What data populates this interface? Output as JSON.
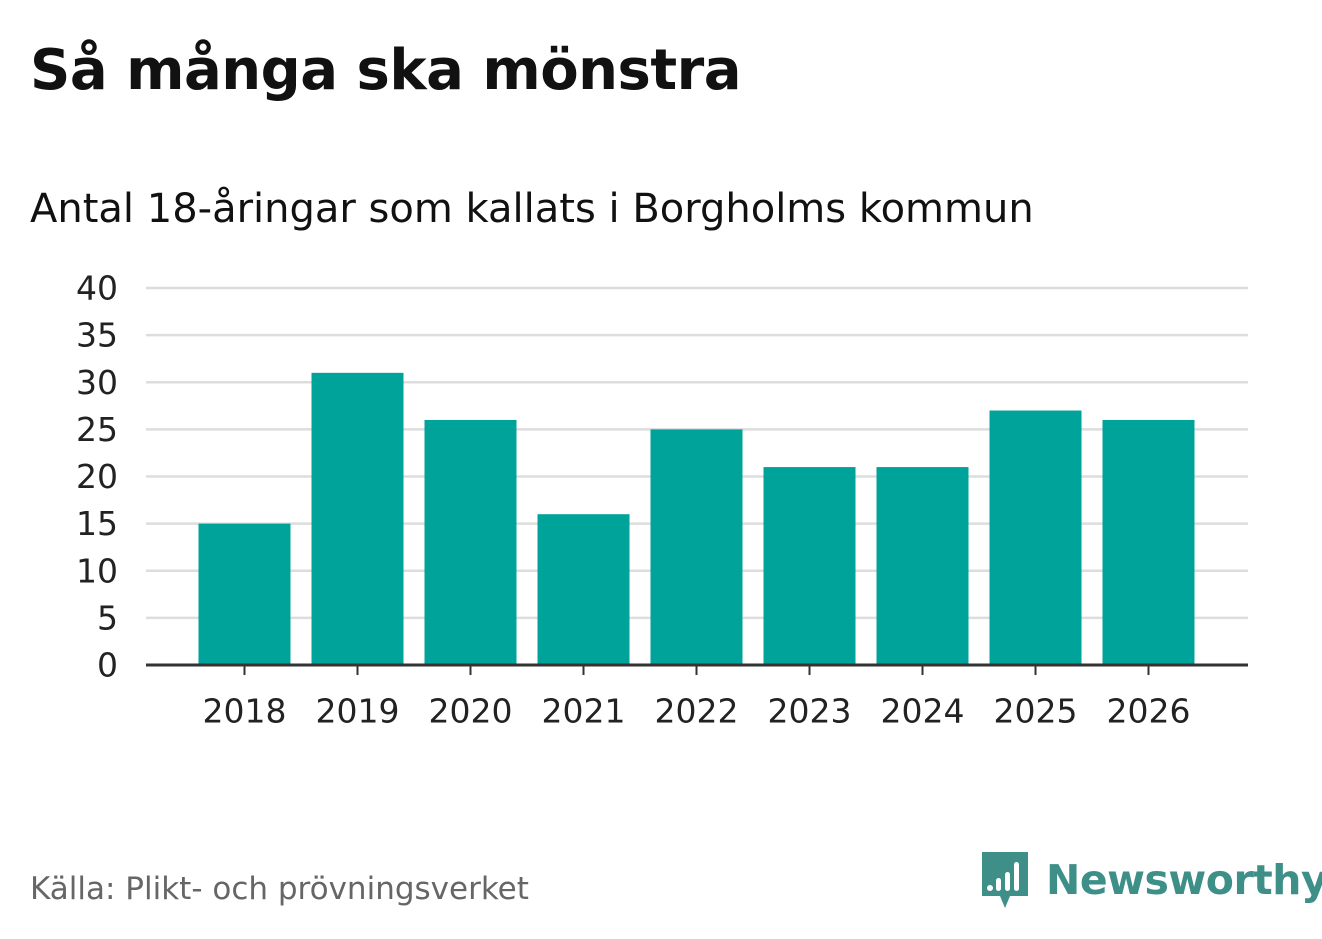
{
  "header": {
    "title": "Så många ska mönstra",
    "subtitle": "Antal 18-åringar som kallats i Borgholms kommun"
  },
  "footer": {
    "source": "Källa: Plikt- och prövningsverket",
    "brand": "Newsworthy"
  },
  "colors": {
    "bar": "#00a39a",
    "grid": "#dddddd",
    "axis": "#333333",
    "brand": "#3d8f88",
    "source_text": "#666666"
  },
  "chart_data": {
    "type": "bar",
    "categories": [
      "2018",
      "2019",
      "2020",
      "2021",
      "2022",
      "2023",
      "2024",
      "2025",
      "2026"
    ],
    "values": [
      15,
      31,
      26,
      16,
      25,
      21,
      21,
      27,
      26
    ],
    "ylim": [
      0,
      40
    ],
    "yticks": [
      0,
      5,
      10,
      15,
      20,
      25,
      30,
      35,
      40
    ],
    "grid": true,
    "xlabel": "",
    "ylabel": ""
  }
}
